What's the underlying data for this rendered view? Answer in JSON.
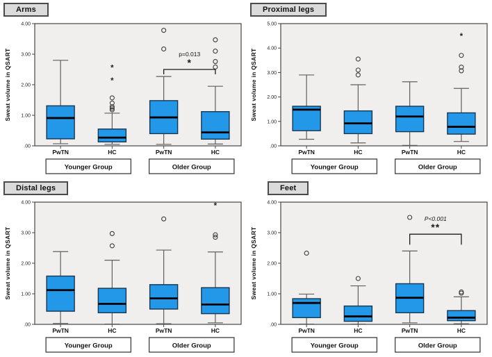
{
  "figure": {
    "ylabel": "Sweat volume in QSART",
    "group_labels": [
      "Younger Group",
      "Older Group"
    ],
    "category_labels": [
      "PwTN",
      "HC"
    ],
    "colors": {
      "box_fill": "#2397e8",
      "box_stroke": "#17364f",
      "median": "#000000",
      "whisker": "#5f5f5f",
      "plot_bg": "#f0efed",
      "panel_border": "#454545",
      "title_bg": "#dbdbdb",
      "outlier": "#3c3c3c",
      "significance": "#1a1a1a"
    }
  },
  "chart_data": [
    {
      "type": "boxplot",
      "title": "Arms",
      "ylabel": "Sweat volume in QSART",
      "ylim": [
        0,
        4
      ],
      "yticks": [
        ".00",
        "1.00",
        "2.00",
        "3.00",
        "4.00"
      ],
      "groups": [
        "Younger Group",
        "Older Group"
      ],
      "categories": [
        "PwTN",
        "HC",
        "PwTN",
        "HC"
      ],
      "boxes": [
        {
          "group": "Younger Group",
          "category": "PwTN",
          "whisker_low": 0.07,
          "q1": 0.23,
          "median": 0.91,
          "q3": 1.31,
          "whisker_high": 2.8,
          "outliers": [],
          "extremes": []
        },
        {
          "group": "Younger Group",
          "category": "HC",
          "whisker_low": 0.05,
          "q1": 0.13,
          "median": 0.27,
          "q3": 0.55,
          "whisker_high": 1.07,
          "outliers": [
            1.18,
            1.23,
            1.28,
            1.4,
            1.57
          ],
          "extremes": [
            2.2,
            2.63
          ]
        },
        {
          "group": "Older Group",
          "category": "PwTN",
          "whisker_low": 0.05,
          "q1": 0.4,
          "median": 0.93,
          "q3": 1.48,
          "whisker_high": 2.27,
          "outliers": [
            3.17,
            3.78
          ],
          "extremes": []
        },
        {
          "group": "Older Group",
          "category": "HC",
          "whisker_low": 0.06,
          "q1": 0.22,
          "median": 0.44,
          "q3": 1.12,
          "whisker_high": 1.95,
          "outliers": [
            2.58,
            2.76,
            3.1,
            3.47
          ],
          "extremes": []
        }
      ],
      "significance": {
        "label": "p=0.013",
        "stars": "*",
        "pair": [
          2,
          3
        ],
        "bar_y": 2.5,
        "italic": false
      }
    },
    {
      "type": "boxplot",
      "title": "Proximal legs",
      "ylabel": "Sweat volume in QSART",
      "ylim": [
        0,
        5
      ],
      "yticks": [
        ".00",
        "1.00",
        "2.00",
        "3.00",
        "4.00",
        "5.00"
      ],
      "groups": [
        "Younger Group",
        "Older Group"
      ],
      "categories": [
        "PwTN",
        "HC",
        "PwTN",
        "HC"
      ],
      "boxes": [
        {
          "group": "Younger Group",
          "category": "PwTN",
          "whisker_low": 0.27,
          "q1": 0.62,
          "median": 1.48,
          "q3": 1.62,
          "whisker_high": 2.9,
          "outliers": [],
          "extremes": []
        },
        {
          "group": "Younger Group",
          "category": "HC",
          "whisker_low": 0.12,
          "q1": 0.5,
          "median": 0.92,
          "q3": 1.43,
          "whisker_high": 2.5,
          "outliers": [
            2.9,
            3.1,
            3.55
          ],
          "extremes": []
        },
        {
          "group": "Older Group",
          "category": "PwTN",
          "whisker_low": 0.02,
          "q1": 0.58,
          "median": 1.2,
          "q3": 1.62,
          "whisker_high": 2.62,
          "outliers": [],
          "extremes": []
        },
        {
          "group": "Older Group",
          "category": "HC",
          "whisker_low": 0.18,
          "q1": 0.48,
          "median": 0.78,
          "q3": 1.35,
          "whisker_high": 2.35,
          "outliers": [
            3.07,
            3.22,
            3.7
          ],
          "extremes": [
            4.57
          ]
        }
      ],
      "significance": null
    },
    {
      "type": "boxplot",
      "title": "Distal legs",
      "ylabel": "Sweat volume in QSART",
      "ylim": [
        0,
        4
      ],
      "yticks": [
        ".00",
        "1.00",
        "2.00",
        "3.00",
        "4.00"
      ],
      "groups": [
        "Younger Group",
        "Older Group"
      ],
      "categories": [
        "PwTN",
        "HC",
        "PwTN",
        "HC"
      ],
      "boxes": [
        {
          "group": "Younger Group",
          "category": "PwTN",
          "whisker_low": 0.03,
          "q1": 0.43,
          "median": 1.12,
          "q3": 1.58,
          "whisker_high": 2.38,
          "outliers": [],
          "extremes": []
        },
        {
          "group": "Younger Group",
          "category": "HC",
          "whisker_low": 0.01,
          "q1": 0.38,
          "median": 0.67,
          "q3": 1.18,
          "whisker_high": 2.1,
          "outliers": [
            2.57,
            2.97
          ],
          "extremes": []
        },
        {
          "group": "Older Group",
          "category": "PwTN",
          "whisker_low": 0.02,
          "q1": 0.5,
          "median": 0.85,
          "q3": 1.3,
          "whisker_high": 2.43,
          "outliers": [
            3.45
          ],
          "extremes": []
        },
        {
          "group": "Older Group",
          "category": "HC",
          "whisker_low": 0.05,
          "q1": 0.35,
          "median": 0.65,
          "q3": 1.2,
          "whisker_high": 2.37,
          "outliers": [
            2.85,
            2.93
          ],
          "extremes": [
            3.96
          ]
        }
      ],
      "significance": null
    },
    {
      "type": "boxplot",
      "title": "Feet",
      "ylabel": "Sweat volume in QSART",
      "ylim": [
        0,
        4
      ],
      "yticks": [
        ".00",
        "1.00",
        "2.00",
        "3.00",
        "4.00"
      ],
      "groups": [
        "Younger Group",
        "Older Group"
      ],
      "categories": [
        "PwTN",
        "HC",
        "PwTN",
        "HC"
      ],
      "boxes": [
        {
          "group": "Younger Group",
          "category": "PwTN",
          "whisker_low": 0.01,
          "q1": 0.22,
          "median": 0.7,
          "q3": 0.84,
          "whisker_high": 0.99,
          "outliers": [
            2.33
          ],
          "extremes": []
        },
        {
          "group": "Younger Group",
          "category": "HC",
          "whisker_low": 0.01,
          "q1": 0.1,
          "median": 0.26,
          "q3": 0.6,
          "whisker_high": 1.26,
          "outliers": [
            1.5
          ],
          "extremes": []
        },
        {
          "group": "Older Group",
          "category": "PwTN",
          "whisker_low": 0.05,
          "q1": 0.38,
          "median": 0.87,
          "q3": 1.33,
          "whisker_high": 2.4,
          "outliers": [
            3.5
          ],
          "extremes": []
        },
        {
          "group": "Older Group",
          "category": "HC",
          "whisker_low": 0.02,
          "q1": 0.12,
          "median": 0.22,
          "q3": 0.45,
          "whisker_high": 0.9,
          "outliers": [
            1.02,
            1.06
          ],
          "extremes": []
        }
      ],
      "significance": {
        "label": "P<0.001",
        "stars": "**",
        "pair": [
          2,
          3
        ],
        "bar_y": 2.95,
        "italic": true
      }
    }
  ]
}
